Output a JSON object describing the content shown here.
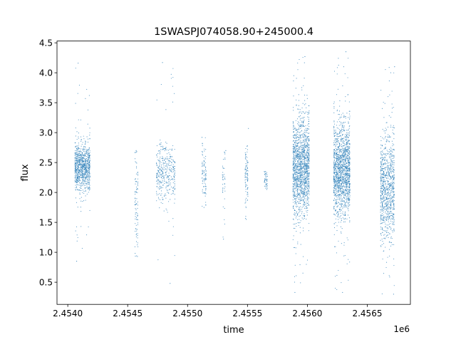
{
  "chart_data": {
    "type": "scatter",
    "title": "1SWASPJ074058.90+245000.4",
    "xlabel": "time",
    "ylabel": "flux",
    "x_offset_label": "1e6",
    "xlim": [
      2.45391,
      2.45686
    ],
    "ylim": [
      0.13,
      4.53
    ],
    "xticks": [
      {
        "value": 2.454,
        "label": "2.4540"
      },
      {
        "value": 2.4545,
        "label": "2.4545"
      },
      {
        "value": 2.455,
        "label": "2.4550"
      },
      {
        "value": 2.4555,
        "label": "2.4555"
      },
      {
        "value": 2.456,
        "label": "2.4560"
      },
      {
        "value": 2.4565,
        "label": "2.4565"
      }
    ],
    "yticks": [
      {
        "value": 0.5,
        "label": "0.5"
      },
      {
        "value": 1.0,
        "label": "1.0"
      },
      {
        "value": 1.5,
        "label": "1.5"
      },
      {
        "value": 2.0,
        "label": "2.0"
      },
      {
        "value": 2.5,
        "label": "2.5"
      },
      {
        "value": 3.0,
        "label": "3.0"
      },
      {
        "value": 3.5,
        "label": "3.5"
      },
      {
        "value": 4.0,
        "label": "4.0"
      },
      {
        "value": 4.5,
        "label": "4.5"
      }
    ],
    "grid": false,
    "legend": "none",
    "marker_color": "#1f77b4",
    "observation_seasons": [
      {
        "x_start": 2.45406,
        "x_end": 2.45419,
        "center_flux": 2.42,
        "spread": 0.2,
        "min_flux": 0.85,
        "max_flux": 4.16,
        "density": "high"
      },
      {
        "x_start": 2.45456,
        "x_end": 2.45459,
        "center_flux": 1.9,
        "spread": 0.45,
        "min_flux": 0.93,
        "max_flux": 2.7,
        "density": "low"
      },
      {
        "x_start": 2.45474,
        "x_end": 2.4549,
        "center_flux": 2.35,
        "spread": 0.25,
        "min_flux": 0.48,
        "max_flux": 4.17,
        "density": "medium"
      },
      {
        "x_start": 2.45512,
        "x_end": 2.45516,
        "center_flux": 2.35,
        "spread": 0.22,
        "min_flux": 1.75,
        "max_flux": 2.92,
        "density": "low"
      },
      {
        "x_start": 2.45529,
        "x_end": 2.45532,
        "center_flux": 2.2,
        "spread": 0.35,
        "min_flux": 1.22,
        "max_flux": 2.7,
        "density": "very-low"
      },
      {
        "x_start": 2.45548,
        "x_end": 2.45551,
        "center_flux": 2.3,
        "spread": 0.25,
        "min_flux": 1.55,
        "max_flux": 3.07,
        "density": "low"
      },
      {
        "x_start": 2.45564,
        "x_end": 2.45567,
        "center_flux": 2.2,
        "spread": 0.1,
        "min_flux": 2.05,
        "max_flux": 2.35,
        "density": "very-low"
      },
      {
        "x_start": 2.45588,
        "x_end": 2.45602,
        "center_flux": 2.42,
        "spread": 0.4,
        "min_flux": 0.33,
        "max_flux": 4.27,
        "density": "very-high"
      },
      {
        "x_start": 2.45622,
        "x_end": 2.45636,
        "center_flux": 2.38,
        "spread": 0.38,
        "min_flux": 0.33,
        "max_flux": 4.35,
        "density": "very-high"
      },
      {
        "x_start": 2.45661,
        "x_end": 2.45673,
        "center_flux": 2.08,
        "spread": 0.45,
        "min_flux": 0.3,
        "max_flux": 4.1,
        "density": "high"
      }
    ]
  }
}
